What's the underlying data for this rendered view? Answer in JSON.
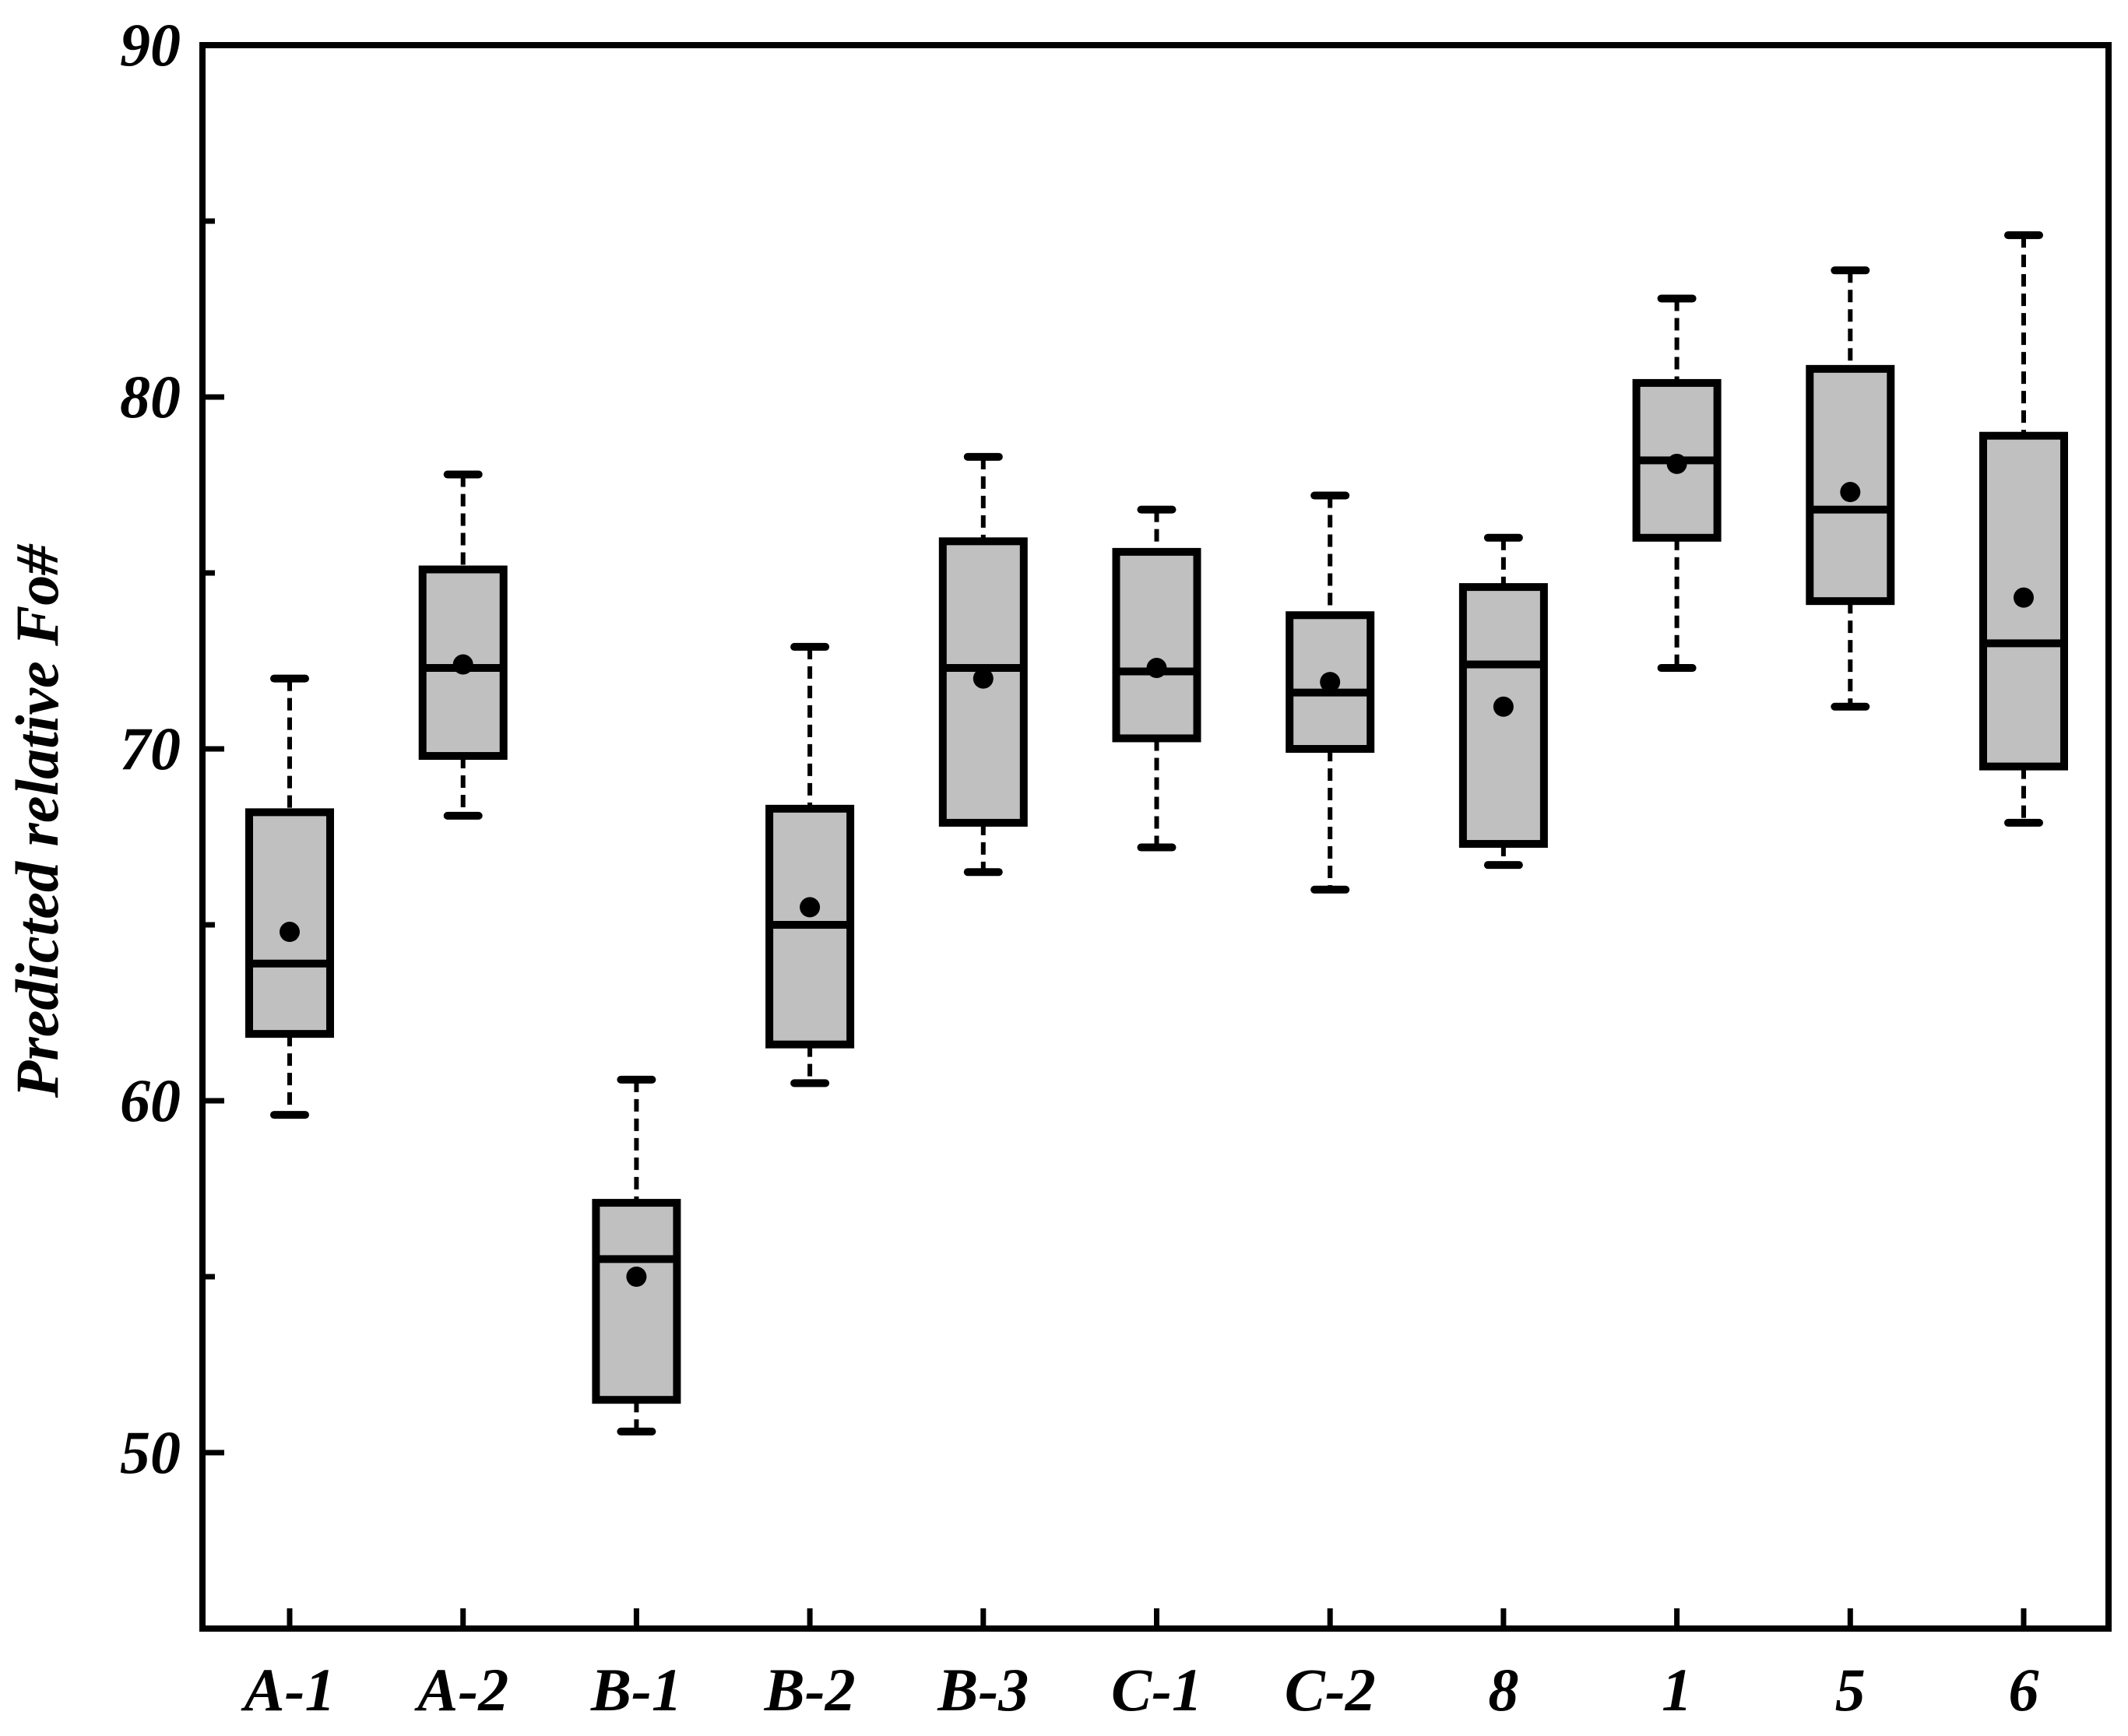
{
  "chart_data": {
    "type": "box",
    "title": "",
    "xlabel": "",
    "ylabel": "Predicted relative Fo#",
    "ylim": [
      45,
      90
    ],
    "y_major_ticks": [
      50,
      60,
      70,
      80,
      90
    ],
    "y_minor_ticks": [
      55,
      65,
      75,
      85
    ],
    "grid": false,
    "colors": {
      "box_fill": "#c0c0c0",
      "stroke": "#000000"
    },
    "categories": [
      "A-1",
      "A-2",
      "B-1",
      "B-2",
      "B-3",
      "C-1",
      "C-2",
      "8",
      "1",
      "5",
      "6"
    ],
    "boxes": [
      {
        "category": "A-1",
        "whisker_low": 59.6,
        "q1": 61.9,
        "median": 63.9,
        "q3": 68.2,
        "whisker_high": 72.0,
        "mean": 64.8
      },
      {
        "category": "A-2",
        "whisker_low": 68.1,
        "q1": 69.8,
        "median": 72.3,
        "q3": 75.1,
        "whisker_high": 77.8,
        "mean": 72.4
      },
      {
        "category": "B-1",
        "whisker_low": 50.6,
        "q1": 51.5,
        "median": 55.5,
        "q3": 57.1,
        "whisker_high": 60.6,
        "mean": 55.0
      },
      {
        "category": "B-2",
        "whisker_low": 60.5,
        "q1": 61.6,
        "median": 65.0,
        "q3": 68.3,
        "whisker_high": 72.9,
        "mean": 65.5
      },
      {
        "category": "B-3",
        "whisker_low": 66.5,
        "q1": 67.9,
        "median": 72.3,
        "q3": 75.9,
        "whisker_high": 78.3,
        "mean": 72.0
      },
      {
        "category": "C-1",
        "whisker_low": 67.2,
        "q1": 70.3,
        "median": 72.2,
        "q3": 75.6,
        "whisker_high": 76.8,
        "mean": 72.3
      },
      {
        "category": "C-2",
        "whisker_low": 66.0,
        "q1": 70.0,
        "median": 71.6,
        "q3": 73.8,
        "whisker_high": 77.2,
        "mean": 71.9
      },
      {
        "category": "8",
        "whisker_low": 66.7,
        "q1": 67.3,
        "median": 72.4,
        "q3": 74.6,
        "whisker_high": 76.0,
        "mean": 71.2
      },
      {
        "category": "1",
        "whisker_low": 72.3,
        "q1": 76.0,
        "median": 78.2,
        "q3": 80.4,
        "whisker_high": 82.8,
        "mean": 78.1
      },
      {
        "category": "5",
        "whisker_low": 71.2,
        "q1": 74.2,
        "median": 76.8,
        "q3": 80.8,
        "whisker_high": 83.6,
        "mean": 77.3
      },
      {
        "category": "6",
        "whisker_low": 67.9,
        "q1": 69.5,
        "median": 73.0,
        "q3": 78.9,
        "whisker_high": 84.6,
        "mean": 74.3
      }
    ]
  }
}
